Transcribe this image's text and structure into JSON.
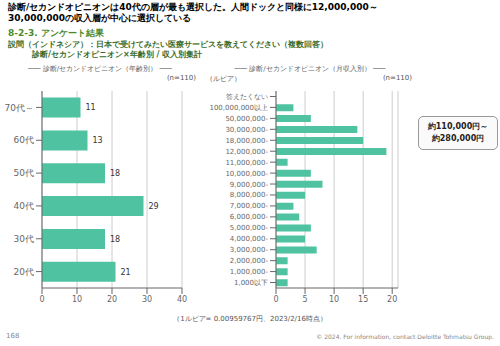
{
  "title": "診断/セカンドオピニオンは40代の層が最も選択した。人間ドックと同様に12,000,000～\n30,000,000の収入層が中心に選択している",
  "subtitle": "8-2-3. アンケート結果",
  "annotations": [
    "設問（インドネシア）：日本で受けてみたい医療サービスを教えてください（複数回答）\n　　　診断/セカンドオピニオン×年齢別 / 収入別集計",
    "約110,000円～\n約280,000円",
    "（1ルピア= 0.00959767円、2023/2/16時点）",
    "168",
    "© 2024. For information, contact Deloitte Tohmatsu Group."
  ],
  "chart_data": [
    {
      "type": "bar",
      "orientation": "horizontal",
      "title": "─── 診断/セカンドオピニオン（年齢別） ───",
      "annotations": [
        "(n=110)"
      ],
      "categories": [
        "20代",
        "30代",
        "40代",
        "50代",
        "60代",
        "70代～"
      ],
      "values": [
        21,
        18,
        29,
        18,
        13,
        11
      ],
      "color": "#4FC3A1",
      "xlim": [
        0,
        40
      ],
      "xticks": [
        0,
        10,
        20,
        30,
        40
      ],
      "grid": true,
      "data_labels": true
    },
    {
      "type": "bar",
      "orientation": "horizontal",
      "title": "─── 診断/セカンドオピニオン（月収入別） ───",
      "annotations": [
        "(n=110)"
      ],
      "ylabel": "（ルピア）",
      "categories": [
        "1,000以下",
        "1,000,000-",
        "2,000,000-",
        "3,000,000-",
        "4,000,000-",
        "5,000,000-",
        "6,000,000-",
        "7,000,000-",
        "8,000,000-",
        "9,000,000-",
        "10,000,000-",
        "11,000,000-",
        "12,000,000-",
        "18,000,000-",
        "30,000,000-",
        "50,000,000-",
        "100,000,000以上",
        "答えたくない"
      ],
      "values": [
        2,
        2,
        2,
        7,
        5,
        6,
        4,
        3,
        5,
        8,
        6,
        2,
        19,
        15,
        14,
        6,
        3,
        0
      ],
      "color": "#4FC3A1",
      "xlim": [
        0,
        21
      ],
      "xticks": [
        0,
        5,
        10,
        15,
        20
      ],
      "grid": true,
      "data_labels": false
    }
  ]
}
